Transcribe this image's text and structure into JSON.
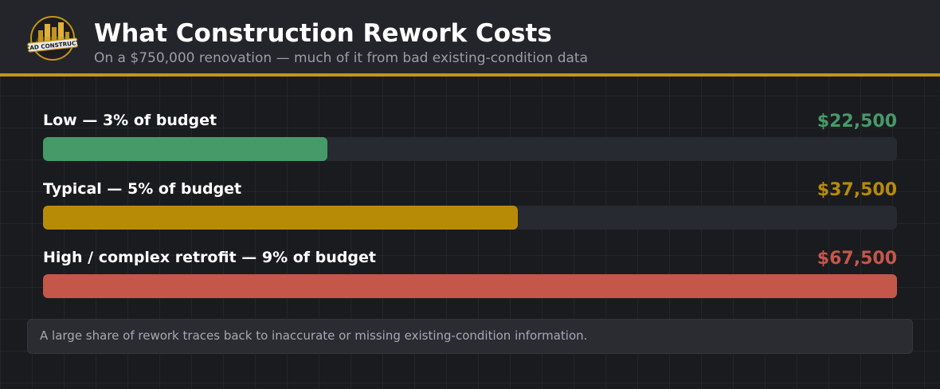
{
  "header": {
    "logo_text": "CAD CONSTRUCT",
    "title": "What Construction Rework Costs",
    "subtitle": "On a $750,000 renovation — much of it from bad existing-condition data"
  },
  "chart_data": {
    "type": "bar",
    "orientation": "horizontal",
    "categories": [
      "Low — 3% of budget",
      "Typical — 5% of budget",
      "High / complex retrofit — 9% of budget"
    ],
    "values": [
      22500,
      37500,
      67500
    ],
    "value_labels": [
      "$22,500",
      "$37,500",
      "$67,500"
    ],
    "colors": [
      "#469a68",
      "#b88b07",
      "#c4574a"
    ],
    "xlim": [
      0,
      67500
    ],
    "grid": false
  },
  "footnote": "A large share of rework traces back to inaccurate or missing existing-condition information.",
  "colors": {
    "accent": "#c4941a",
    "track": "#272a31"
  }
}
